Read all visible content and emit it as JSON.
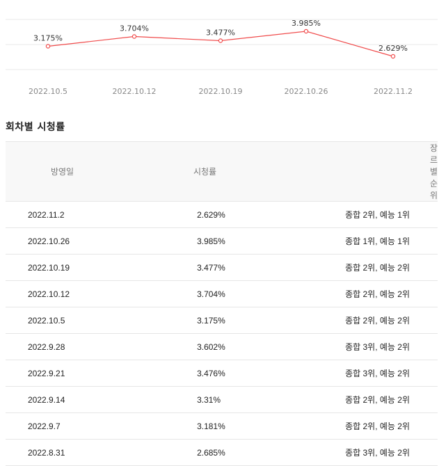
{
  "chart_data": {
    "type": "line",
    "categories": [
      "2022.10.5",
      "2022.10.12",
      "2022.10.19",
      "2022.10.26",
      "2022.11.2"
    ],
    "values": [
      3.175,
      3.704,
      3.477,
      3.985,
      2.629
    ],
    "value_labels": [
      "3.175%",
      "3.704%",
      "3.477%",
      "3.985%",
      "2.629%"
    ],
    "grid": true,
    "colors": {
      "line": "#f04b4b",
      "grid": "#e8e8e8",
      "tick": "#888888"
    }
  },
  "section": {
    "title": "회차별 시청률"
  },
  "table": {
    "headers": {
      "date": "방영일",
      "rating": "시청률",
      "rank": "장르별순위"
    },
    "rows": [
      {
        "date": "2022.11.2",
        "rating": "2.629%",
        "rank": "종합 2위, 예능 1위"
      },
      {
        "date": "2022.10.26",
        "rating": "3.985%",
        "rank": "종합 1위, 예능 1위"
      },
      {
        "date": "2022.10.19",
        "rating": "3.477%",
        "rank": "종합 2위, 예능 2위"
      },
      {
        "date": "2022.10.12",
        "rating": "3.704%",
        "rank": "종합 2위, 예능 2위"
      },
      {
        "date": "2022.10.5",
        "rating": "3.175%",
        "rank": "종합 2위, 예능 2위"
      },
      {
        "date": "2022.9.28",
        "rating": "3.602%",
        "rank": "종합 3위, 예능 2위"
      },
      {
        "date": "2022.9.21",
        "rating": "3.476%",
        "rank": "종합 3위, 예능 2위"
      },
      {
        "date": "2022.9.14",
        "rating": "3.31%",
        "rank": "종합 2위, 예능 2위"
      },
      {
        "date": "2022.9.7",
        "rating": "3.181%",
        "rank": "종합 2위, 예능 2위"
      },
      {
        "date": "2022.8.31",
        "rating": "2.685%",
        "rank": "종합 3위, 예능 2위"
      }
    ]
  }
}
